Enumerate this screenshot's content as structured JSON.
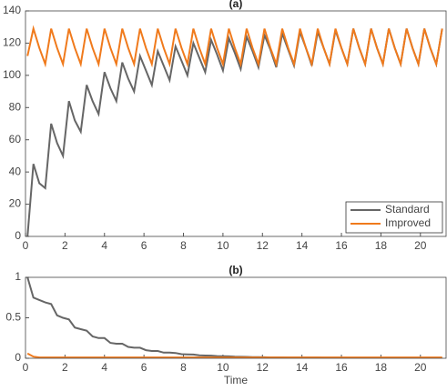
{
  "chart_data": [
    {
      "type": "line",
      "title": "(a)",
      "legend": "lower right",
      "x": [
        0.1,
        0.4,
        0.7,
        1.0,
        1.3,
        1.6,
        1.9,
        2.2,
        2.5,
        2.8,
        3.1,
        3.4,
        3.7,
        4.0,
        4.3,
        4.6,
        4.9,
        5.2,
        5.5,
        5.8,
        6.1,
        6.4,
        6.7,
        7.0,
        7.3,
        7.6,
        7.9,
        8.2,
        8.5,
        8.8,
        9.1,
        9.4,
        9.7,
        10.0,
        10.3,
        10.6,
        10.9,
        11.2,
        11.5,
        11.8,
        12.1,
        12.4,
        12.7,
        13.0,
        13.3,
        13.6,
        13.9,
        14.2,
        14.5,
        14.8,
        15.1,
        15.4,
        15.7,
        16.0,
        16.3,
        16.6,
        16.9,
        17.2,
        17.5,
        17.8,
        18.1,
        18.4,
        18.7,
        19.0,
        19.3,
        19.6,
        19.9,
        20.2,
        20.5,
        20.8,
        21.1
      ],
      "series": [
        {
          "name": "Standard",
          "color": "#666666",
          "values": [
            0,
            45,
            33,
            30,
            70,
            58,
            50,
            84,
            72,
            65,
            94,
            84,
            76,
            102,
            92,
            84,
            108,
            98,
            90,
            112,
            103,
            94,
            115,
            106,
            97,
            118,
            109,
            100,
            120,
            111,
            102,
            122,
            113,
            103,
            123,
            114,
            104,
            124,
            115,
            105,
            125,
            116,
            105,
            126,
            116,
            106,
            127,
            117,
            106,
            127,
            117,
            107,
            128,
            117,
            107,
            129,
            117,
            107,
            129,
            117,
            107,
            129,
            117,
            107,
            129,
            117,
            107,
            129,
            117,
            107,
            129
          ]
        },
        {
          "name": "Improved",
          "color": "#f07a1c",
          "values": [
            112,
            129,
            117,
            107,
            129,
            117,
            107,
            129,
            117,
            107,
            129,
            117,
            107,
            129,
            117,
            107,
            129,
            117,
            107,
            129,
            117,
            107,
            129,
            117,
            107,
            129,
            117,
            107,
            129,
            117,
            107,
            129,
            117,
            107,
            129,
            117,
            107,
            129,
            117,
            107,
            129,
            117,
            107,
            129,
            117,
            107,
            129,
            117,
            107,
            129,
            117,
            107,
            129,
            117,
            107,
            129,
            117,
            107,
            129,
            117,
            107,
            129,
            117,
            107,
            129,
            117,
            107,
            129,
            117,
            107,
            129
          ]
        }
      ],
      "xlim": [
        0,
        21.3
      ],
      "xticks": [
        0,
        2,
        4,
        6,
        8,
        10,
        12,
        14,
        16,
        18,
        20
      ],
      "ylim": [
        0,
        140
      ],
      "yticks": [
        0,
        20,
        40,
        60,
        80,
        100,
        120,
        140
      ]
    },
    {
      "type": "line",
      "title": "(b)",
      "xlabel": "Time",
      "x": [
        0.1,
        0.4,
        0.7,
        1.0,
        1.3,
        1.6,
        1.9,
        2.2,
        2.5,
        2.8,
        3.1,
        3.4,
        3.7,
        4.0,
        4.3,
        4.6,
        4.9,
        5.2,
        5.5,
        5.8,
        6.1,
        6.4,
        6.7,
        7.0,
        7.3,
        7.6,
        7.9,
        8.2,
        8.5,
        8.8,
        9.1,
        9.4,
        9.7,
        10.0,
        10.3,
        10.6,
        10.9,
        11.2,
        11.5,
        11.8,
        12.1,
        12.4,
        12.7,
        13.0,
        13.3,
        13.6,
        13.9,
        14.2,
        14.5,
        14.8,
        15.1,
        15.4,
        15.7,
        16.0,
        16.3,
        16.6,
        16.9,
        17.2,
        17.5,
        17.8,
        18.1,
        18.4,
        18.7,
        19.0,
        19.3,
        19.6,
        19.9,
        20.2,
        20.5,
        20.8,
        21.1
      ],
      "series": [
        {
          "color": "#666666",
          "values": [
            1.0,
            0.75,
            0.72,
            0.69,
            0.67,
            0.53,
            0.5,
            0.48,
            0.38,
            0.36,
            0.34,
            0.27,
            0.25,
            0.25,
            0.19,
            0.18,
            0.18,
            0.14,
            0.13,
            0.13,
            0.1,
            0.09,
            0.09,
            0.07,
            0.07,
            0.065,
            0.051,
            0.048,
            0.046,
            0.036,
            0.034,
            0.033,
            0.027,
            0.025,
            0.024,
            0.019,
            0.018,
            0.017,
            0.013,
            0.013,
            0.012,
            0.01,
            0.01,
            0.01,
            0.009,
            0.009,
            0.009,
            0.008,
            0.008,
            0.008,
            0.007,
            0.007,
            0.007,
            0.007,
            0.006,
            0.006,
            0.006,
            0.006,
            0.006,
            0.006,
            0.005,
            0.005,
            0.005,
            0.005,
            0.005,
            0.005,
            0.005,
            0.005,
            0.005,
            0.005,
            0.005
          ]
        },
        {
          "color": "#f07a1c",
          "values": [
            0.06,
            0.02,
            0.01,
            0.01,
            0.01,
            0.01,
            0.01,
            0.01,
            0.01,
            0.01,
            0.01,
            0.01,
            0.01,
            0.01,
            0.01,
            0.01,
            0.01,
            0.01,
            0.01,
            0.01,
            0.01,
            0.01,
            0.01,
            0.01,
            0.01,
            0.01,
            0.01,
            0.01,
            0.01,
            0.01,
            0.01,
            0.01,
            0.01,
            0.01,
            0.01,
            0.01,
            0.01,
            0.01,
            0.01,
            0.01,
            0.01,
            0.01,
            0.01,
            0.01,
            0.01,
            0.01,
            0.01,
            0.01,
            0.01,
            0.01,
            0.01,
            0.01,
            0.01,
            0.01,
            0.01,
            0.01,
            0.01,
            0.01,
            0.01,
            0.01,
            0.01,
            0.01,
            0.01,
            0.01,
            0.01,
            0.01,
            0.01,
            0.01,
            0.01,
            0.01,
            0.01
          ]
        }
      ],
      "xlim": [
        0,
        21.3
      ],
      "xticks": [
        0,
        2,
        4,
        6,
        8,
        10,
        12,
        14,
        16,
        18,
        20
      ],
      "ylim": [
        0,
        1
      ],
      "yticks": [
        0,
        0.5,
        1
      ]
    }
  ]
}
